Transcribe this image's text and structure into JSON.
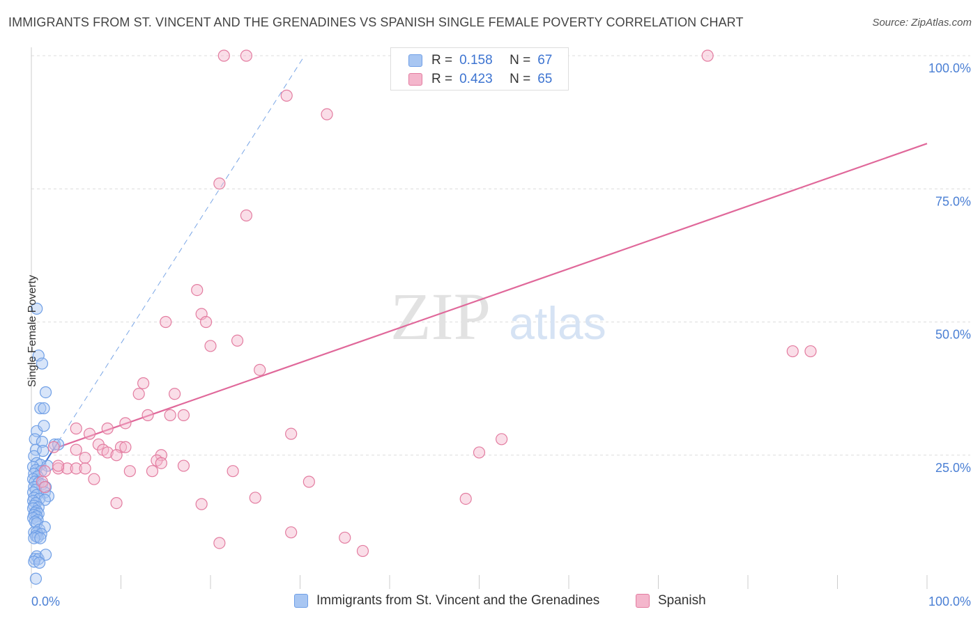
{
  "title": "IMMIGRANTS FROM ST. VINCENT AND THE GRENADINES VS SPANISH SINGLE FEMALE POVERTY CORRELATION CHART",
  "source": "Source: ZipAtlas.com",
  "watermark": {
    "zip": "ZIP",
    "atlas": "atlas"
  },
  "legend_top": {
    "r_label": "R =",
    "n_label": "N =",
    "rows": [
      {
        "r": "0.158",
        "n": "67"
      },
      {
        "r": "0.423",
        "n": "65"
      }
    ]
  },
  "chart_data": {
    "type": "scatter",
    "title": "IMMIGRANTS FROM ST. VINCENT AND THE GRENADINES VS SPANISH SINGLE FEMALE POVERTY CORRELATION CHART",
    "xlabel": "",
    "ylabel": "Single Female Poverty",
    "xlim": [
      0,
      100
    ],
    "ylim": [
      0,
      100
    ],
    "x_tick_labels": [
      "0.0%",
      "100.0%"
    ],
    "y_tick_labels": [
      "25.0%",
      "50.0%",
      "75.0%",
      "100.0%"
    ],
    "y_ticks": [
      25,
      50,
      75,
      100
    ],
    "grid": true,
    "legend": "bottom-center",
    "series": [
      {
        "name": "Immigrants from St. Vincent and the Grenadines",
        "color": "#6f9fe6",
        "fill": "#a8c6f2",
        "trend": {
          "x": [
            0,
            3.0
          ],
          "y": [
            19.5,
            27.5
          ]
        },
        "trend_extension": {
          "x": [
            3.0,
            30.5
          ],
          "y": [
            27.5,
            100
          ]
        },
        "points": [
          [
            0.6,
            52.5
          ],
          [
            0.8,
            43.7
          ],
          [
            1.2,
            42.2
          ],
          [
            1.6,
            36.8
          ],
          [
            1.0,
            33.8
          ],
          [
            1.4,
            33.8
          ],
          [
            0.6,
            29.5
          ],
          [
            1.4,
            30.5
          ],
          [
            0.4,
            28.0
          ],
          [
            1.2,
            27.5
          ],
          [
            2.6,
            27.0
          ],
          [
            3.0,
            27.0
          ],
          [
            0.5,
            26.0
          ],
          [
            1.3,
            25.8
          ],
          [
            0.3,
            24.8
          ],
          [
            0.6,
            23.5
          ],
          [
            1.0,
            23.2
          ],
          [
            1.8,
            23.0
          ],
          [
            0.2,
            22.8
          ],
          [
            0.5,
            22.2
          ],
          [
            1.1,
            22.0
          ],
          [
            0.3,
            21.5
          ],
          [
            0.7,
            21.0
          ],
          [
            0.2,
            20.5
          ],
          [
            0.4,
            20.0
          ],
          [
            0.8,
            19.8
          ],
          [
            1.2,
            19.5
          ],
          [
            0.3,
            19.0
          ],
          [
            1.6,
            19.0
          ],
          [
            0.5,
            18.5
          ],
          [
            0.2,
            18.0
          ],
          [
            1.5,
            18.0
          ],
          [
            0.6,
            17.5
          ],
          [
            1.9,
            17.3
          ],
          [
            0.3,
            17.0
          ],
          [
            0.9,
            16.8
          ],
          [
            0.2,
            16.4
          ],
          [
            1.5,
            16.6
          ],
          [
            0.5,
            16.0
          ],
          [
            0.3,
            15.5
          ],
          [
            0.8,
            15.2
          ],
          [
            0.2,
            15.0
          ],
          [
            0.6,
            14.5
          ],
          [
            0.4,
            14.2
          ],
          [
            0.8,
            14.0
          ],
          [
            0.3,
            13.8
          ],
          [
            0.6,
            13.5
          ],
          [
            0.2,
            13.2
          ],
          [
            0.7,
            12.8
          ],
          [
            0.4,
            12.5
          ],
          [
            0.6,
            12.2
          ],
          [
            0.9,
            11.0
          ],
          [
            1.5,
            11.5
          ],
          [
            0.3,
            10.5
          ],
          [
            0.6,
            10.5
          ],
          [
            1.1,
            10.2
          ],
          [
            0.5,
            9.8
          ],
          [
            0.7,
            9.6
          ],
          [
            0.3,
            9.4
          ],
          [
            1.0,
            9.4
          ],
          [
            0.6,
            6.0
          ],
          [
            0.4,
            5.5
          ],
          [
            0.8,
            5.5
          ],
          [
            0.3,
            5.0
          ],
          [
            1.6,
            6.3
          ],
          [
            0.9,
            4.8
          ],
          [
            0.5,
            1.8
          ]
        ]
      },
      {
        "name": "Spanish",
        "color": "#e37ca0",
        "fill": "#f4b6cc",
        "trend": {
          "x": [
            3.0,
            100
          ],
          "y": [
            26.5,
            83.5
          ]
        },
        "points": [
          [
            21.5,
            100
          ],
          [
            24.0,
            100
          ],
          [
            42.0,
            100
          ],
          [
            75.5,
            100
          ],
          [
            45.0,
            100
          ],
          [
            28.5,
            92.5
          ],
          [
            33.0,
            89.0
          ],
          [
            21.0,
            76.0
          ],
          [
            24.0,
            70.0
          ],
          [
            18.5,
            56.0
          ],
          [
            19.0,
            51.5
          ],
          [
            19.5,
            50.0
          ],
          [
            15.0,
            50.0
          ],
          [
            20.0,
            45.5
          ],
          [
            23.0,
            46.5
          ],
          [
            85.0,
            44.5
          ],
          [
            87.0,
            44.5
          ],
          [
            25.5,
            41.0
          ],
          [
            12.5,
            38.5
          ],
          [
            12.0,
            36.5
          ],
          [
            16.0,
            36.5
          ],
          [
            13.0,
            32.5
          ],
          [
            17.0,
            32.5
          ],
          [
            15.5,
            32.5
          ],
          [
            10.5,
            31.0
          ],
          [
            5.0,
            30.0
          ],
          [
            8.5,
            30.0
          ],
          [
            6.5,
            29.0
          ],
          [
            29.0,
            29.0
          ],
          [
            52.5,
            28.0
          ],
          [
            7.5,
            27.0
          ],
          [
            10.0,
            26.5
          ],
          [
            10.5,
            26.5
          ],
          [
            8.0,
            26.0
          ],
          [
            2.5,
            26.5
          ],
          [
            5.0,
            26.0
          ],
          [
            6.0,
            24.5
          ],
          [
            8.5,
            25.5
          ],
          [
            9.5,
            25.0
          ],
          [
            14.5,
            25.0
          ],
          [
            3.0,
            22.5
          ],
          [
            4.0,
            22.5
          ],
          [
            5.0,
            22.5
          ],
          [
            6.0,
            22.5
          ],
          [
            11.0,
            22.0
          ],
          [
            13.5,
            22.0
          ],
          [
            14.0,
            24.0
          ],
          [
            14.5,
            23.5
          ],
          [
            17.0,
            23.0
          ],
          [
            22.5,
            22.0
          ],
          [
            50.0,
            25.5
          ],
          [
            1.5,
            22.0
          ],
          [
            1.2,
            20.0
          ],
          [
            3.0,
            23.0
          ],
          [
            7.0,
            20.5
          ],
          [
            31.0,
            20.0
          ],
          [
            1.5,
            19.0
          ],
          [
            9.5,
            16.0
          ],
          [
            19.0,
            15.8
          ],
          [
            25.0,
            17.0
          ],
          [
            48.5,
            16.8
          ],
          [
            29.0,
            10.5
          ],
          [
            35.0,
            9.5
          ],
          [
            21.0,
            8.5
          ],
          [
            37.0,
            7.0
          ]
        ]
      }
    ]
  }
}
